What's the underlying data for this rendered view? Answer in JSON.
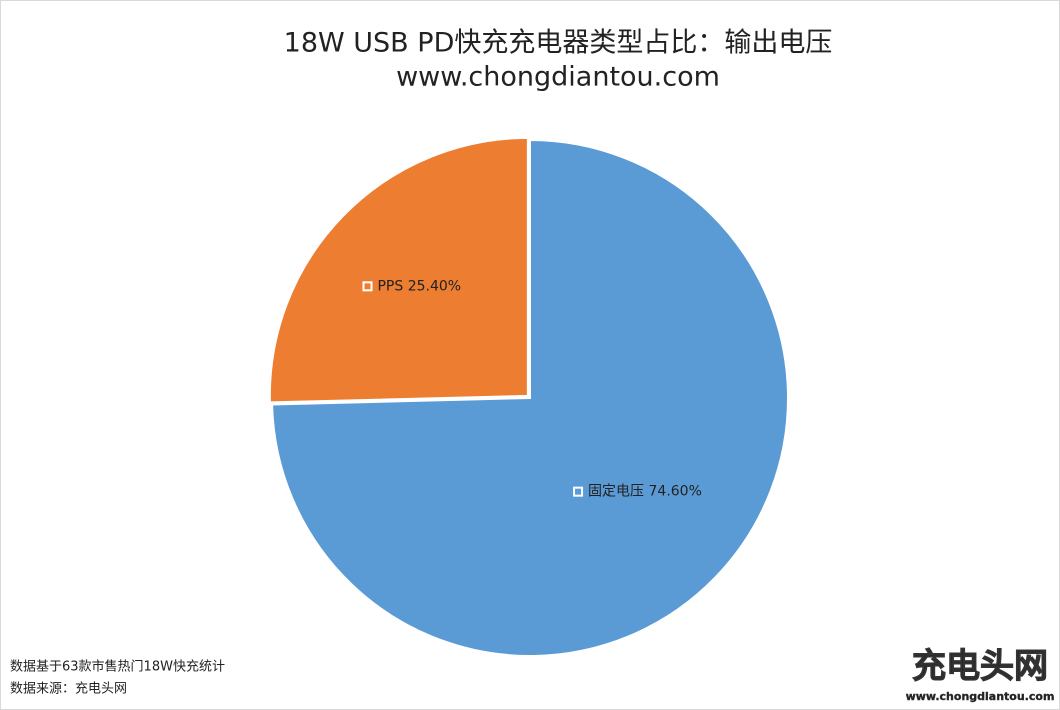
{
  "chart_data": {
    "type": "pie",
    "title": "18W USB PD快充充电器类型占比：输出电压",
    "subtitle": "www.chongdiantou.com",
    "categories": [
      "固定电压",
      "PPS"
    ],
    "values": [
      74.6,
      25.4
    ],
    "value_labels": [
      "74.60%",
      "25.40%"
    ],
    "colors": [
      "#5b9bd5",
      "#ed7d31"
    ],
    "notes": [
      "数据基于63款市售热门18W快充统计",
      "数据来源：充电头网"
    ],
    "watermark": {
      "brand": "充电头网",
      "url": "www.chongdiantou.com"
    }
  }
}
